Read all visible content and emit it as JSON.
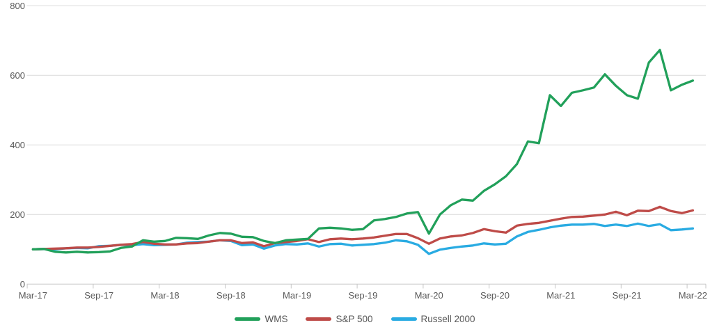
{
  "chart_data": {
    "type": "line",
    "title": "",
    "xlabel": "",
    "ylabel": "",
    "x_interval": "monthly",
    "x_start": "Mar-17",
    "x_end": "Mar-22",
    "points_per_series": 61,
    "x_tick_labels": [
      "Mar-17",
      "Sep-17",
      "Mar-18",
      "Sep-18",
      "Mar-19",
      "Sep-19",
      "Mar-20",
      "Sep-20",
      "Mar-21",
      "Sep-21",
      "Mar-22"
    ],
    "y_ticks": [
      "800",
      "600",
      "400",
      "200",
      "0"
    ],
    "y_tick_values": [
      800,
      600,
      400,
      200,
      0
    ],
    "ylim": [
      0,
      800
    ],
    "grid": "horizontal",
    "legend_position": "bottom-center",
    "series": [
      {
        "name": "WMS",
        "color": "#21a05a",
        "values": [
          100,
          101,
          93,
          91,
          93,
          91,
          92,
          94,
          104,
          108,
          126,
          122,
          124,
          133,
          132,
          130,
          140,
          147,
          145,
          136,
          135,
          124,
          118,
          126,
          128,
          130,
          160,
          162,
          160,
          156,
          158,
          183,
          187,
          193,
          203,
          207,
          145,
          200,
          227,
          243,
          240,
          268,
          287,
          310,
          345,
          410,
          405,
          543,
          512,
          550,
          557,
          565,
          603,
          570,
          543,
          533,
          637,
          673,
          557,
          573,
          585
        ]
      },
      {
        "name": "S&P 500",
        "color": "#be4b48",
        "values": [
          100,
          101,
          102,
          103,
          105,
          105,
          107,
          110,
          113,
          115,
          121,
          116,
          114,
          114,
          117,
          118,
          122,
          126,
          126,
          118,
          120,
          109,
          118,
          121,
          124,
          129,
          121,
          129,
          131,
          129,
          131,
          134,
          139,
          144,
          144,
          132,
          116,
          131,
          137,
          140,
          147,
          158,
          152,
          148,
          168,
          173,
          176,
          182,
          188,
          193,
          194,
          197,
          200,
          208,
          198,
          211,
          210,
          222,
          210,
          204,
          212
        ]
      },
      {
        "name": "Russell 2000",
        "color": "#29abe2",
        "values": [
          100,
          101,
          100,
          103,
          104,
          103,
          109,
          110,
          113,
          112,
          115,
          112,
          113,
          114,
          119,
          121,
          122,
          126,
          124,
          112,
          114,
          102,
          111,
          115,
          114,
          117,
          108,
          115,
          116,
          111,
          113,
          115,
          119,
          126,
          123,
          113,
          87,
          99,
          104,
          108,
          111,
          117,
          114,
          116,
          137,
          150,
          156,
          163,
          168,
          171,
          171,
          173,
          167,
          171,
          167,
          174,
          167,
          172,
          155,
          157,
          160
        ]
      }
    ],
    "colors": {
      "gridline": "#dadada",
      "axis_line": "#c6c6c6",
      "tick_mark": "#c6c6c6",
      "axis_text": "#595959",
      "legend_text": "#555555",
      "background": "#ffffff"
    }
  }
}
